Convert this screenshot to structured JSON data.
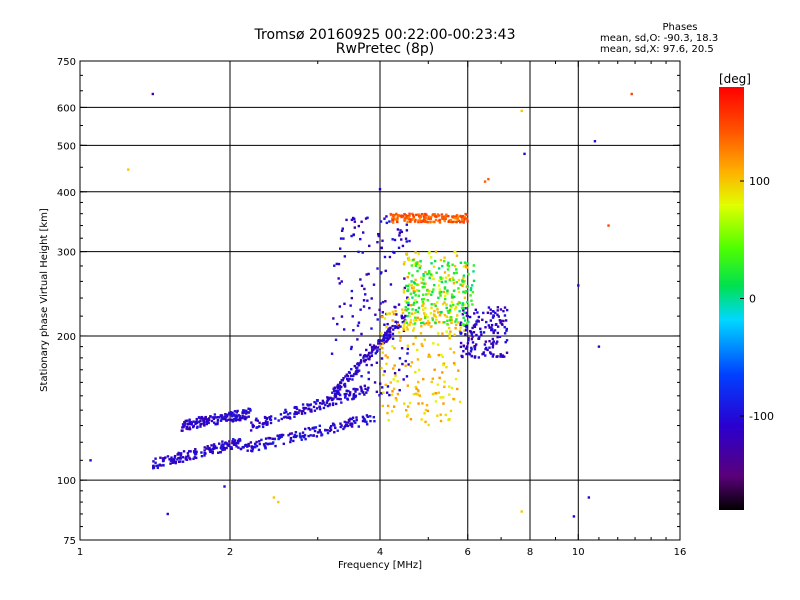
{
  "title": {
    "line1": "Tromsø 20160925 00:22:00-00:23:43",
    "line2": "RwPretec (8p)"
  },
  "stats": {
    "heading": "Phases",
    "o_line": "mean, sd,O: -90.3, 18.3",
    "x_line": "mean, sd,X:  97.6, 20.5"
  },
  "colorbar": {
    "unit_label": "[deg]",
    "ticks": [
      "100",
      "0",
      "-100"
    ],
    "tick_values": [
      100,
      0,
      -100
    ],
    "range": [
      -180,
      180
    ]
  },
  "chart_data": {
    "type": "scatter",
    "xlabel": "Frequency [MHz]",
    "ylabel": "Stationary phase Virtual Height [km]",
    "xscale": "log",
    "yscale": "log",
    "xlim": [
      1,
      16
    ],
    "ylim": [
      75,
      750
    ],
    "xticks": [
      1,
      2,
      4,
      6,
      8,
      10,
      16
    ],
    "yticks": [
      75,
      100,
      200,
      300,
      400,
      500,
      600,
      750
    ],
    "grid_x": [
      2,
      4,
      6,
      8,
      10
    ],
    "grid_y": [
      100,
      200,
      300,
      400,
      500,
      600
    ],
    "clusters": [
      {
        "name": "low-trace-lower",
        "x_range": [
          1.4,
          2.1
        ],
        "y_range": [
          108,
          120
        ],
        "phase": -110
      },
      {
        "name": "low-trace-middle",
        "x_range": [
          1.6,
          2.2
        ],
        "y_range": [
          130,
          138
        ],
        "phase": -110
      },
      {
        "name": "mid-trace-lower",
        "x_range": [
          2.1,
          3.9
        ],
        "y_range": [
          116,
          135
        ],
        "phase": -105
      },
      {
        "name": "mid-trace-upper",
        "x_range": [
          2.2,
          3.8
        ],
        "y_range": [
          130,
          155
        ],
        "phase": -108
      },
      {
        "name": "upper-trace",
        "x_range": [
          3.2,
          4.5
        ],
        "y_range": [
          150,
          220
        ],
        "phase": -112
      },
      {
        "name": "vertical-stack",
        "x_range": [
          3.2,
          4.6
        ],
        "y_range": [
          150,
          360
        ],
        "phase": -110
      },
      {
        "name": "x-mode-cluster",
        "x_range": [
          4.0,
          5.8
        ],
        "y_range": [
          130,
          230
        ],
        "phase": 100
      },
      {
        "name": "x-mode-upper",
        "x_range": [
          4.4,
          6.0
        ],
        "y_range": [
          200,
          300
        ],
        "phase": 95
      },
      {
        "name": "o-mode-high",
        "x_range": [
          5.8,
          7.2
        ],
        "y_range": [
          180,
          230
        ],
        "phase": -112
      },
      {
        "name": "high-echo-orange",
        "x_range": [
          4.2,
          6.0
        ],
        "y_range": [
          345,
          360
        ],
        "phase": 140
      },
      {
        "name": "scatter-cyan",
        "x_range": [
          4.5,
          6.2
        ],
        "y_range": [
          210,
          290
        ],
        "phase": 20
      }
    ],
    "isolated_points": [
      {
        "x": 1.4,
        "y": 640,
        "phase": -130
      },
      {
        "x": 1.25,
        "y": 445,
        "phase": 100
      },
      {
        "x": 2.5,
        "y": 90,
        "phase": 100
      },
      {
        "x": 2.45,
        "y": 92,
        "phase": 100
      },
      {
        "x": 12.8,
        "y": 640,
        "phase": 150
      },
      {
        "x": 11.5,
        "y": 340,
        "phase": 150
      },
      {
        "x": 10.8,
        "y": 510,
        "phase": -100
      },
      {
        "x": 10.0,
        "y": 255,
        "phase": -110
      },
      {
        "x": 11.0,
        "y": 190,
        "phase": -120
      },
      {
        "x": 7.8,
        "y": 480,
        "phase": -110
      },
      {
        "x": 7.7,
        "y": 590,
        "phase": 100
      },
      {
        "x": 6.6,
        "y": 425,
        "phase": 140
      },
      {
        "x": 6.5,
        "y": 420,
        "phase": 140
      },
      {
        "x": 4.0,
        "y": 405,
        "phase": -110
      },
      {
        "x": 1.05,
        "y": 110,
        "phase": -110
      },
      {
        "x": 1.5,
        "y": 85,
        "phase": -110
      },
      {
        "x": 1.95,
        "y": 97,
        "phase": -110
      },
      {
        "x": 10.5,
        "y": 92,
        "phase": -110
      },
      {
        "x": 9.8,
        "y": 84,
        "phase": -110
      },
      {
        "x": 7.7,
        "y": 86,
        "phase": 100
      }
    ]
  },
  "colors": {
    "background": "#ffffff",
    "axes": "#000000"
  }
}
